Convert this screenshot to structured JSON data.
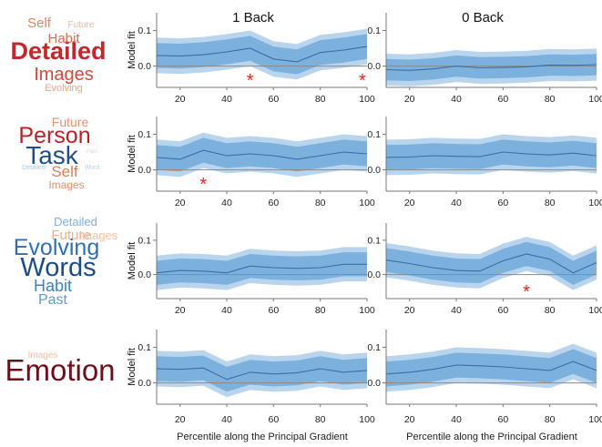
{
  "column_titles": [
    "1 Back",
    "0 Back"
  ],
  "xlabel": "Percentile along the Principal Gradient",
  "ylabel": "Model fit",
  "colors": {
    "band_outer": "#b9d5ee",
    "band_inner": "#7db1dd",
    "line": "#3a6ea5",
    "zero": "#8a8a8a",
    "axis": "#777777",
    "star": "#e8231c"
  },
  "word_clouds": [
    {
      "words": [
        {
          "text": "Detailed",
          "color": "#c0282d"
        },
        {
          "text": "Images",
          "color": "#cf4a3c"
        },
        {
          "text": "Habit",
          "color": "#d96a4e"
        },
        {
          "text": "Self",
          "color": "#e08566"
        },
        {
          "text": "Future",
          "color": "#efb8a0"
        },
        {
          "text": "Evolving",
          "color": "#eba585"
        }
      ]
    },
    {
      "words": [
        {
          "text": "Person",
          "color": "#b8202a"
        },
        {
          "text": "Task",
          "color": "#1f4e8c"
        },
        {
          "text": "Future",
          "color": "#e3906e"
        },
        {
          "text": "Self",
          "color": "#e07a5c"
        },
        {
          "text": "Images",
          "color": "#e58d6d"
        },
        {
          "text": "Detailed",
          "color": "#a9c5e0"
        },
        {
          "text": "Word",
          "color": "#b9d0e6"
        },
        {
          "text": "Past",
          "color": "#c9d8e8"
        }
      ]
    },
    {
      "words": [
        {
          "text": "Detailed",
          "color": "#7fb0d9"
        },
        {
          "text": "Future",
          "color": "#f0b08e"
        },
        {
          "text": "Images",
          "color": "#f2c0a2"
        },
        {
          "text": "Evolving",
          "color": "#2e6fb3"
        },
        {
          "text": "Words",
          "color": "#1c4b86"
        },
        {
          "text": "Habit",
          "color": "#3a84c4"
        },
        {
          "text": "Past",
          "color": "#5a9bd0"
        }
      ]
    },
    {
      "words": [
        {
          "text": "Images",
          "color": "#f0bfa3"
        },
        {
          "text": "Emotion",
          "color": "#6b0f1a"
        }
      ]
    }
  ],
  "chart_data": [
    {
      "type": "line",
      "row": 1,
      "col": 1,
      "x": [
        10,
        20,
        30,
        40,
        50,
        60,
        70,
        80,
        90,
        100
      ],
      "y": [
        0.03,
        0.028,
        0.032,
        0.04,
        0.05,
        0.02,
        0.012,
        0.038,
        0.045,
        0.055
      ],
      "ci_inner": [
        0.035,
        0.035,
        0.035,
        0.035,
        0.035,
        0.035,
        0.035,
        0.035,
        0.035,
        0.035
      ],
      "ci_outer": [
        0.05,
        0.05,
        0.05,
        0.05,
        0.05,
        0.05,
        0.05,
        0.05,
        0.05,
        0.05
      ],
      "xticks": [
        20,
        40,
        60,
        80,
        100
      ],
      "yticks": [
        0.0,
        0.1
      ],
      "xlim": [
        10,
        100
      ],
      "ylim": [
        -0.06,
        0.15
      ],
      "significant_x": [
        50,
        98
      ]
    },
    {
      "type": "line",
      "row": 1,
      "col": 2,
      "x": [
        10,
        20,
        30,
        40,
        50,
        60,
        70,
        80,
        90,
        100
      ],
      "y": [
        -0.01,
        -0.012,
        -0.008,
        0.0,
        -0.005,
        -0.004,
        -0.002,
        0.003,
        0.002,
        0.004
      ],
      "ci_inner": [
        0.03,
        0.03,
        0.03,
        0.03,
        0.03,
        0.03,
        0.03,
        0.03,
        0.03,
        0.03
      ],
      "ci_outer": [
        0.045,
        0.045,
        0.045,
        0.045,
        0.045,
        0.045,
        0.045,
        0.045,
        0.045,
        0.045
      ],
      "xticks": [
        20,
        40,
        60,
        80,
        100
      ],
      "yticks": [
        0.0,
        0.1
      ],
      "xlim": [
        10,
        100
      ],
      "ylim": [
        -0.06,
        0.15
      ],
      "significant_x": []
    },
    {
      "type": "line",
      "row": 2,
      "col": 1,
      "x": [
        10,
        20,
        30,
        40,
        50,
        60,
        70,
        80,
        90,
        100
      ],
      "y": [
        0.035,
        0.03,
        0.055,
        0.04,
        0.045,
        0.04,
        0.03,
        0.04,
        0.05,
        0.045
      ],
      "ci_inner": [
        0.035,
        0.035,
        0.035,
        0.035,
        0.035,
        0.035,
        0.035,
        0.035,
        0.035,
        0.035
      ],
      "ci_outer": [
        0.05,
        0.05,
        0.05,
        0.05,
        0.05,
        0.05,
        0.05,
        0.05,
        0.05,
        0.05
      ],
      "xticks": [
        20,
        40,
        60,
        80,
        100
      ],
      "yticks": [
        0.0,
        0.1
      ],
      "xlim": [
        10,
        100
      ],
      "ylim": [
        -0.06,
        0.15
      ],
      "significant_x": [
        30
      ]
    },
    {
      "type": "line",
      "row": 2,
      "col": 2,
      "x": [
        10,
        20,
        30,
        40,
        50,
        60,
        70,
        80,
        90,
        100
      ],
      "y": [
        0.035,
        0.036,
        0.04,
        0.038,
        0.037,
        0.05,
        0.045,
        0.042,
        0.047,
        0.04
      ],
      "ci_inner": [
        0.035,
        0.035,
        0.035,
        0.035,
        0.035,
        0.035,
        0.035,
        0.035,
        0.035,
        0.035
      ],
      "ci_outer": [
        0.05,
        0.05,
        0.05,
        0.05,
        0.05,
        0.05,
        0.05,
        0.05,
        0.05,
        0.05
      ],
      "xticks": [
        20,
        40,
        60,
        80,
        100
      ],
      "yticks": [
        0.0,
        0.1
      ],
      "xlim": [
        10,
        100
      ],
      "ylim": [
        -0.06,
        0.15
      ],
      "significant_x": []
    },
    {
      "type": "line",
      "row": 3,
      "col": 1,
      "x": [
        10,
        20,
        30,
        40,
        50,
        60,
        70,
        80,
        90,
        100
      ],
      "y": [
        0.005,
        0.012,
        0.01,
        0.005,
        0.025,
        0.02,
        0.018,
        0.02,
        0.03,
        0.03
      ],
      "ci_inner": [
        0.035,
        0.035,
        0.035,
        0.035,
        0.035,
        0.035,
        0.035,
        0.035,
        0.035,
        0.035
      ],
      "ci_outer": [
        0.05,
        0.05,
        0.05,
        0.05,
        0.05,
        0.05,
        0.05,
        0.05,
        0.05,
        0.05
      ],
      "xticks": [
        20,
        40,
        60,
        80,
        100
      ],
      "yticks": [
        0.0,
        0.1
      ],
      "xlim": [
        10,
        100
      ],
      "ylim": [
        -0.07,
        0.15
      ],
      "significant_x": []
    },
    {
      "type": "line",
      "row": 3,
      "col": 2,
      "x": [
        10,
        20,
        30,
        40,
        50,
        60,
        70,
        80,
        90,
        100
      ],
      "y": [
        0.042,
        0.032,
        0.02,
        0.012,
        0.01,
        0.04,
        0.06,
        0.045,
        0.005,
        0.035
      ],
      "ci_inner": [
        0.035,
        0.035,
        0.035,
        0.035,
        0.035,
        0.035,
        0.035,
        0.035,
        0.035,
        0.035
      ],
      "ci_outer": [
        0.05,
        0.05,
        0.05,
        0.05,
        0.05,
        0.05,
        0.05,
        0.05,
        0.05,
        0.05
      ],
      "xticks": [
        20,
        40,
        60,
        80,
        100
      ],
      "yticks": [
        0.0,
        0.1
      ],
      "xlim": [
        10,
        100
      ],
      "ylim": [
        -0.07,
        0.15
      ],
      "significant_x": [
        70
      ]
    },
    {
      "type": "line",
      "row": 4,
      "col": 1,
      "x": [
        10,
        20,
        30,
        40,
        50,
        60,
        70,
        80,
        90,
        100
      ],
      "y": [
        0.04,
        0.038,
        0.042,
        0.01,
        0.03,
        0.025,
        0.028,
        0.04,
        0.03,
        0.035
      ],
      "ci_inner": [
        0.035,
        0.035,
        0.035,
        0.035,
        0.035,
        0.035,
        0.035,
        0.035,
        0.035,
        0.035
      ],
      "ci_outer": [
        0.05,
        0.05,
        0.05,
        0.05,
        0.05,
        0.05,
        0.05,
        0.05,
        0.05,
        0.05
      ],
      "xticks": [
        20,
        40,
        60,
        80,
        100
      ],
      "yticks": [
        0.0,
        0.1
      ],
      "xlim": [
        10,
        100
      ],
      "ylim": [
        -0.06,
        0.15
      ],
      "significant_x": []
    },
    {
      "type": "line",
      "row": 4,
      "col": 2,
      "x": [
        10,
        20,
        30,
        40,
        50,
        60,
        70,
        80,
        90,
        100
      ],
      "y": [
        0.025,
        0.03,
        0.038,
        0.05,
        0.048,
        0.045,
        0.04,
        0.035,
        0.06,
        0.035
      ],
      "ci_inner": [
        0.035,
        0.035,
        0.035,
        0.035,
        0.035,
        0.035,
        0.035,
        0.035,
        0.035,
        0.035
      ],
      "ci_outer": [
        0.05,
        0.05,
        0.05,
        0.05,
        0.05,
        0.05,
        0.05,
        0.05,
        0.05,
        0.05
      ],
      "xticks": [
        20,
        40,
        60,
        80,
        100
      ],
      "yticks": [
        0.0,
        0.1
      ],
      "xlim": [
        10,
        100
      ],
      "ylim": [
        -0.06,
        0.15
      ],
      "significant_x": []
    }
  ]
}
